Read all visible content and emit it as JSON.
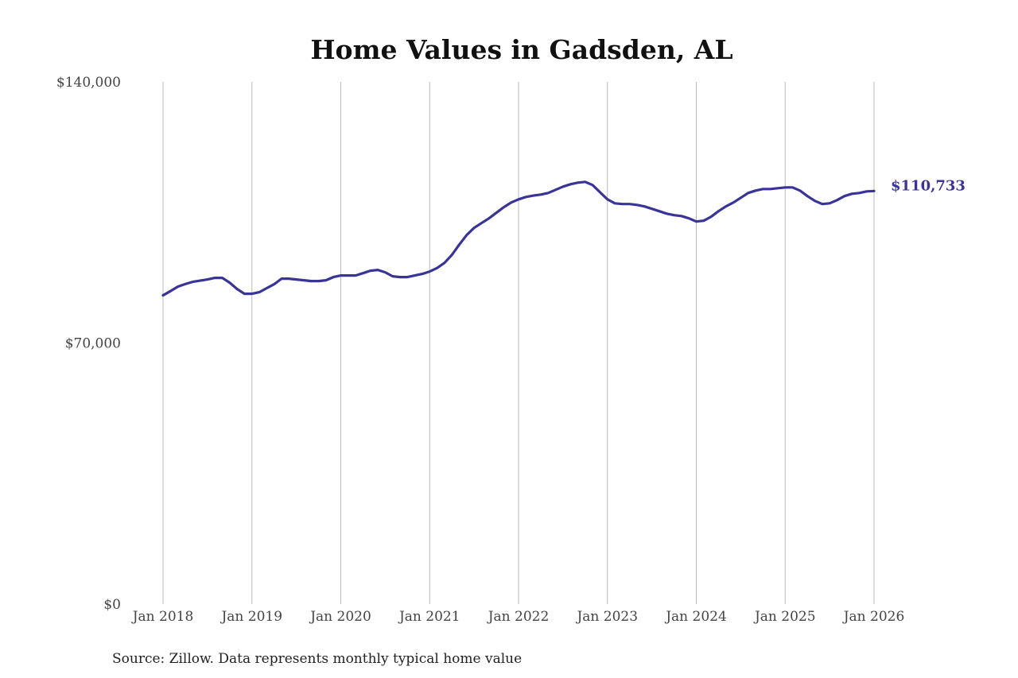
{
  "chart_data": {
    "type": "line",
    "title": "Home Values in Gadsden, AL",
    "xlabel": "",
    "ylabel": "",
    "ylim": [
      0,
      140000
    ],
    "yticks": [
      {
        "value": 0,
        "label": "$0"
      },
      {
        "value": 70000,
        "label": "$70,000"
      },
      {
        "value": 140000,
        "label": "$140,000"
      }
    ],
    "xticks": [
      {
        "year": 2018,
        "label": "Jan 2018"
      },
      {
        "year": 2019,
        "label": "Jan 2019"
      },
      {
        "year": 2020,
        "label": "Jan 2020"
      },
      {
        "year": 2021,
        "label": "Jan 2021"
      },
      {
        "year": 2022,
        "label": "Jan 2022"
      },
      {
        "year": 2023,
        "label": "Jan 2023"
      },
      {
        "year": 2024,
        "label": "Jan 2024"
      },
      {
        "year": 2025,
        "label": "Jan 2025"
      },
      {
        "year": 2026,
        "label": "Jan 2026"
      }
    ],
    "grid": "vertical",
    "start": "2018-01",
    "frequency": "monthly",
    "series": [
      {
        "name": "Typical home value",
        "color": "#3a3399",
        "values": [
          82770,
          83900,
          85110,
          85800,
          86380,
          86700,
          87020,
          87450,
          87450,
          86170,
          84470,
          83190,
          83190,
          83620,
          84700,
          85750,
          87240,
          87240,
          87020,
          86810,
          86600,
          86600,
          86810,
          87660,
          88090,
          88090,
          88090,
          88700,
          89360,
          89580,
          88940,
          87870,
          87660,
          87660,
          88090,
          88510,
          89150,
          90100,
          91490,
          93620,
          96390,
          98940,
          100850,
          102130,
          103410,
          104900,
          106390,
          107660,
          108510,
          109150,
          109500,
          109790,
          110220,
          111070,
          111920,
          112560,
          112980,
          113190,
          112340,
          110430,
          108510,
          107450,
          107240,
          107240,
          107020,
          106600,
          105960,
          105320,
          104680,
          104260,
          104040,
          103410,
          102560,
          102770,
          103830,
          105320,
          106600,
          107660,
          108940,
          110220,
          110850,
          111280,
          111280,
          111490,
          111700,
          111700,
          110850,
          109370,
          108090,
          107240,
          107450,
          108300,
          109370,
          110000,
          110220,
          110640,
          110733
        ],
        "end_label": "$110,733"
      }
    ],
    "source": "Source: Zillow. Data represents monthly typical home value"
  }
}
